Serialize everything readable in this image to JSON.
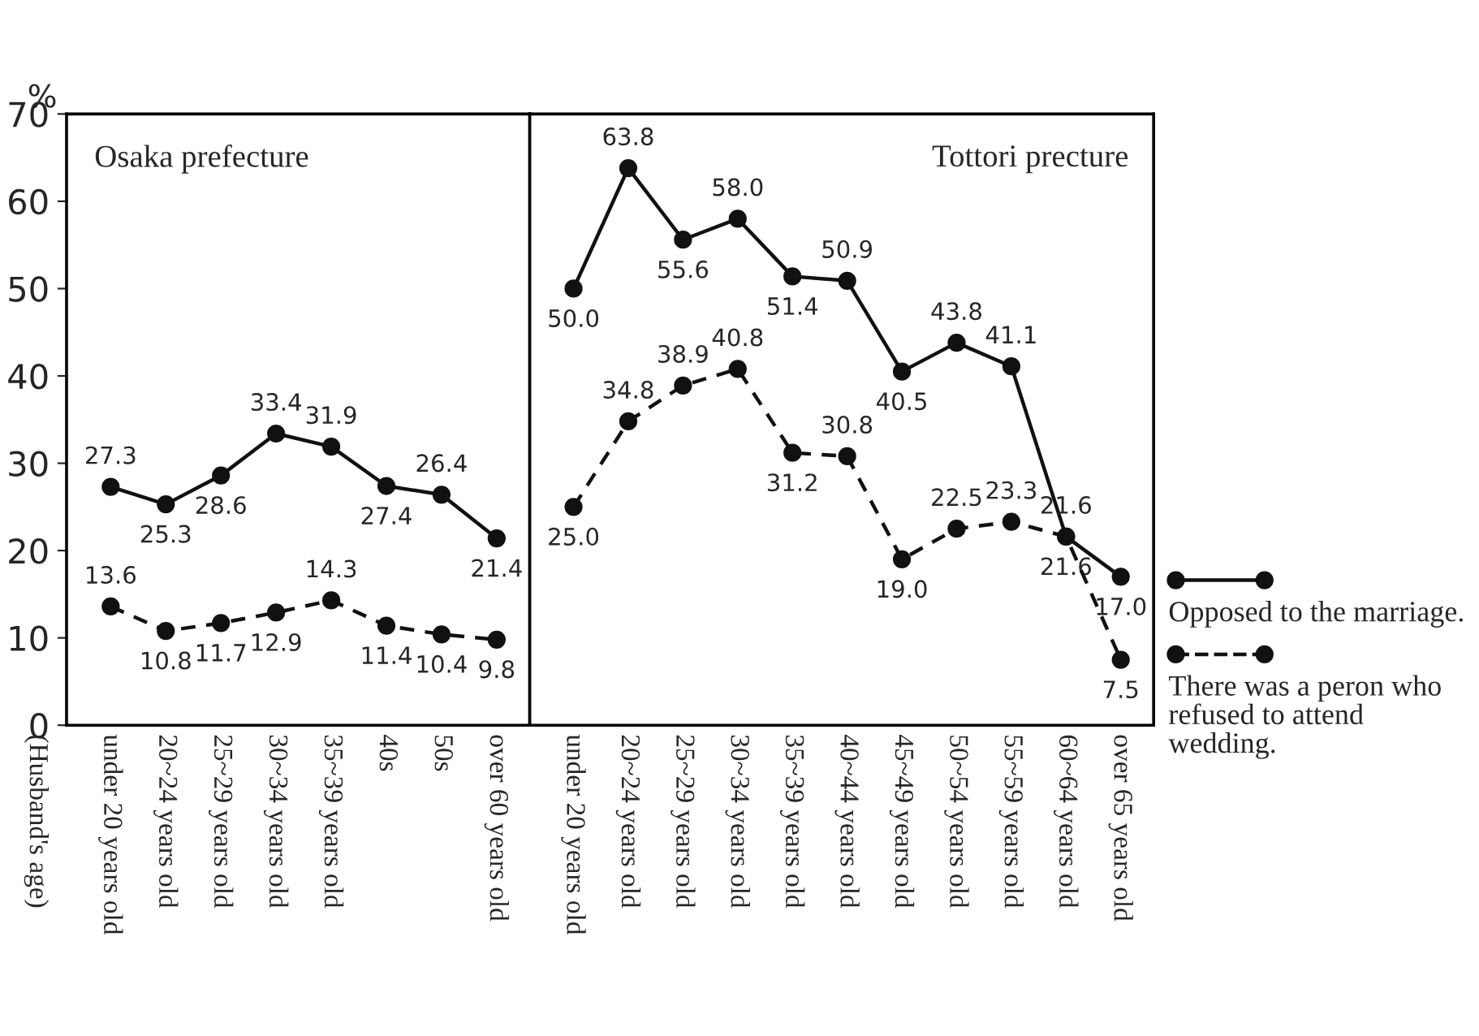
{
  "chart_data": [
    {
      "type": "line",
      "title": "Osaka prefecture",
      "annotations": [
        "(Husband's age)"
      ],
      "ylabel": "%",
      "data_labels": true,
      "categories": [
        "under 20 years old",
        "20~24 years old",
        "25~29 years old",
        "30~34 years old",
        "35~39 years old",
        "40s",
        "50s",
        "over 60 years old"
      ],
      "series": [
        {
          "color": "#111111",
          "line_style": "solid",
          "values": [
            27.3,
            25.3,
            28.6,
            33.4,
            31.9,
            27.4,
            26.4,
            21.4
          ],
          "value_labels": [
            "27.3",
            "25.3",
            "28.6",
            "33.4",
            "31.9",
            "27.4",
            "26.4",
            "21.4"
          ]
        },
        {
          "color": "#111111",
          "line_style": "dashed",
          "values": [
            13.6,
            10.8,
            11.7,
            12.9,
            14.3,
            11.4,
            10.4,
            9.8
          ],
          "value_labels": [
            "13.6",
            "10.8",
            "11.7",
            "12.9",
            "14.3",
            "11.4",
            "10.4",
            "9.8"
          ]
        }
      ],
      "ylim": [
        0,
        70
      ],
      "yticks": [
        0,
        10,
        20,
        30,
        40,
        50,
        60,
        70
      ],
      "marker": "circle",
      "legend": false
    },
    {
      "type": "line",
      "title": "Tottori precture",
      "data_labels": true,
      "categories": [
        "under 20 years old",
        "20~24 years old",
        "25~29 years old",
        "30~34 years old",
        "35~39 years old",
        "40~44 years old",
        "45~49 years old",
        "50~54 years old",
        "55~59 years old",
        "60~64 years old",
        "over 65 years old"
      ],
      "series": [
        {
          "name": "Opposed to the marriage.",
          "color": "#111111",
          "line_style": "solid",
          "values": [
            50.0,
            63.8,
            55.6,
            58.0,
            51.4,
            50.9,
            40.5,
            43.8,
            41.1,
            21.6,
            17.0
          ],
          "value_labels": [
            "50.0",
            "63.8",
            "55.6",
            "58.0",
            "51.4",
            "50.9",
            "40.5",
            "43.8",
            "41.1",
            "21.6",
            "17.0"
          ]
        },
        {
          "name": "There was a peron who refused to attend wedding.",
          "color": "#111111",
          "line_style": "dashed",
          "values": [
            25.0,
            34.8,
            38.9,
            40.8,
            31.2,
            30.8,
            19.0,
            22.5,
            23.3,
            21.6,
            7.5
          ],
          "value_labels": [
            "25.0",
            "34.8",
            "38.9",
            "40.8",
            "31.2",
            "30.8",
            "19.0",
            "22.5",
            "23.3",
            "21.6",
            "7.5"
          ]
        }
      ],
      "ylim": [
        0,
        70
      ],
      "yticks": [
        0,
        10,
        20,
        30,
        40,
        50,
        60,
        70
      ],
      "tick_labels": "x",
      "marker": "circle",
      "legend": "right"
    }
  ]
}
